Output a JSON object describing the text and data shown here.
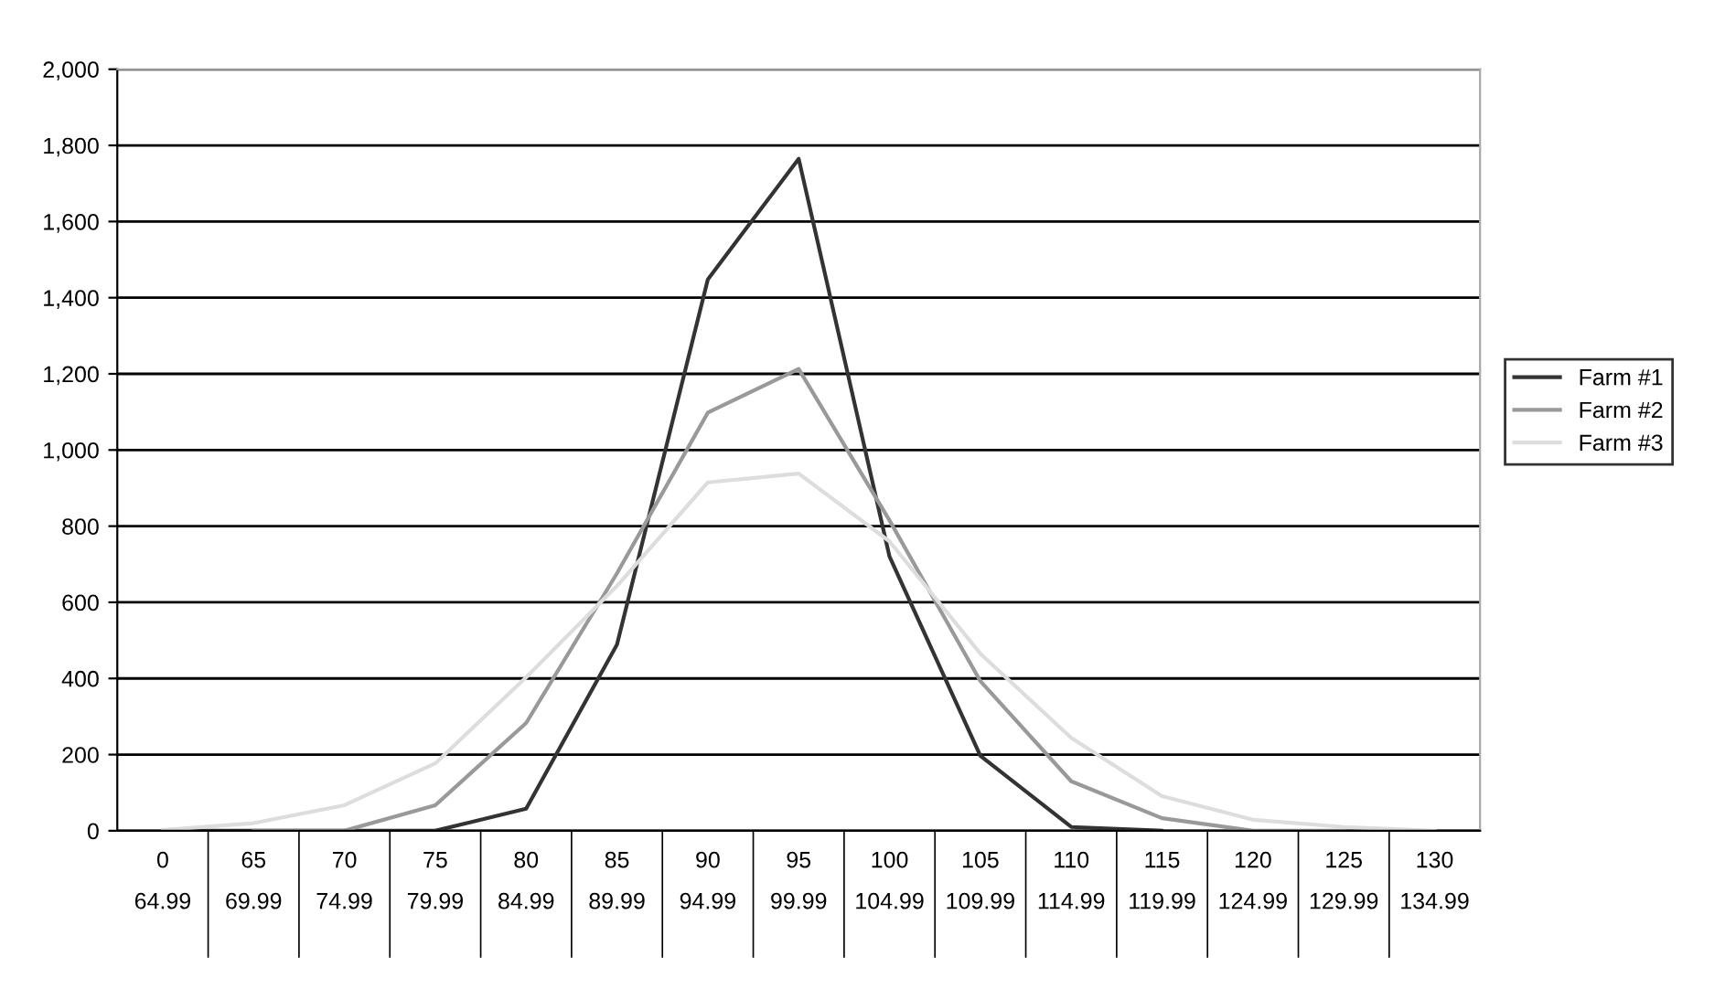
{
  "chart_data": {
    "type": "line",
    "categories": [
      "0\n64.99",
      "65\n69.99",
      "70\n74.99",
      "75\n79.99",
      "80\n84.99",
      "85\n89.99",
      "90\n94.99",
      "95\n99.99",
      "100\n104.99",
      "105\n109.99",
      "110\n114.99",
      "115\n119.99",
      "120\n124.99",
      "125\n129.99",
      "130\n134.99"
    ],
    "series": [
      {
        "name": "Farm #1",
        "color": "#333333",
        "values": [
          0,
          0,
          0,
          0,
          58,
          489,
          1448,
          1765,
          720,
          197,
          10,
          0,
          null,
          null,
          null
        ]
      },
      {
        "name": "Farm #2",
        "color": "#999999",
        "values": [
          null,
          0,
          0,
          67,
          283,
          676,
          1098,
          1213,
          815,
          393,
          130,
          33,
          0,
          0,
          null
        ]
      },
      {
        "name": "Farm #3",
        "color": "#dddddd",
        "values": [
          2,
          20,
          67,
          177,
          403,
          643,
          915,
          938,
          760,
          465,
          244,
          91,
          29,
          10,
          0
        ]
      }
    ],
    "ylim": [
      0,
      2000
    ],
    "yticks": [
      {
        "value": 0,
        "label": "0"
      },
      {
        "value": 200,
        "label": "200"
      },
      {
        "value": 400,
        "label": "400"
      },
      {
        "value": 600,
        "label": "600"
      },
      {
        "value": 800,
        "label": "800"
      },
      {
        "value": 1000,
        "label": "1,000"
      },
      {
        "value": 1200,
        "label": "1,200"
      },
      {
        "value": 1400,
        "label": "1,400"
      },
      {
        "value": 1600,
        "label": "1,600"
      },
      {
        "value": 1800,
        "label": "1,800"
      },
      {
        "value": 2000,
        "label": "2,000"
      }
    ],
    "grid": "y",
    "legend": "right",
    "marker": "none",
    "line_style": "solid"
  }
}
